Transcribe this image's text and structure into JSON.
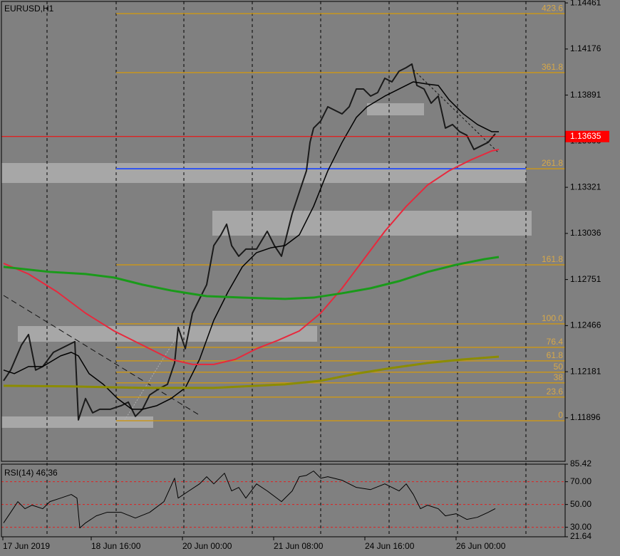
{
  "chart_data": [
    {
      "type": "line",
      "title": "EURUSD,H1",
      "xlim": [
        0,
        198.25
      ],
      "ylim": [
        1.11627,
        1.14479
      ],
      "xticks": [
        {
          "value": 1,
          "label": "17 Jun 2019"
        },
        {
          "value": 32,
          "label": "18 Jun 16:00"
        },
        {
          "value": 64,
          "label": "20 Jun 00:00"
        },
        {
          "value": 96,
          "label": "21 Jun 08:00"
        },
        {
          "value": 128,
          "label": "24 Jun 16:00"
        },
        {
          "value": 160,
          "label": "26 Jun 00:00"
        }
      ],
      "yticks": [
        1.14461,
        1.14176,
        1.13891,
        1.13606,
        1.13321,
        1.13036,
        1.12751,
        1.12466,
        1.12181,
        1.11896
      ],
      "current_price": 1.13635,
      "current_price_color": "#ff0000",
      "hline": 1.13436,
      "hline_color": "#3355ee",
      "fib_x_start": 40.75,
      "fib_color": "#c8961e",
      "levels": [
        {
          "value": 1.14395,
          "label": "423.6"
        },
        {
          "value": 1.1403,
          "label": "361.8"
        },
        {
          "value": 1.13436,
          "label": "261.8"
        },
        {
          "value": 1.12842,
          "label": "161.8"
        },
        {
          "value": 1.12477,
          "label": "100.0"
        },
        {
          "value": 1.12332,
          "label": "76.4"
        },
        {
          "value": 1.12248,
          "label": "61.8"
        },
        {
          "value": 1.12178,
          "label": "50"
        },
        {
          "value": 1.12112,
          "label": "38"
        },
        {
          "value": 1.12024,
          "label": "23.6"
        },
        {
          "value": 1.11878,
          "label": "0"
        }
      ],
      "series": [
        {
          "color": "#1a1a1a",
          "width": 2,
          "x": [
            1.25,
            3.75,
            7.5,
            10,
            12.5,
            15,
            18.75,
            23.75,
            26.25,
            27.5,
            30,
            32.5,
            35,
            38.75,
            42.5,
            45,
            47.5,
            50,
            52.5,
            56.25,
            58.75,
            61.25,
            62.5,
            65,
            67.5,
            70,
            72.5,
            75,
            77.5,
            79.5,
            81.25,
            83.75,
            86.25,
            90,
            93.75,
            96.25,
            98.75,
            100,
            102.5,
            105,
            107.5,
            108.75,
            110,
            112.5,
            115,
            117.5,
            120,
            122.5,
            125,
            127.5,
            130,
            132.5,
            135,
            137.5,
            140,
            142.5,
            144.5,
            146.25,
            148.75,
            151.25,
            153.75,
            156.25,
            158.75,
            161.25,
            163.75,
            166.25,
            168.75,
            171.25,
            173.75
          ],
          "values": [
            1.12125,
            1.12191,
            1.12345,
            1.12411,
            1.12191,
            1.12213,
            1.12301,
            1.12345,
            1.12367,
            1.11883,
            1.12015,
            1.11927,
            1.11949,
            1.11949,
            1.11971,
            1.11993,
            1.11905,
            1.11949,
            1.12037,
            1.12081,
            1.12103,
            1.12235,
            1.12455,
            1.12323,
            1.12543,
            1.12631,
            1.12719,
            1.12961,
            1.13027,
            1.13093,
            1.12961,
            1.12895,
            1.12939,
            1.12939,
            1.13049,
            1.12961,
            1.12895,
            1.12983,
            1.13159,
            1.13291,
            1.13423,
            1.13599,
            1.13687,
            1.13731,
            1.13819,
            1.13797,
            1.13775,
            1.13819,
            1.13929,
            1.13929,
            1.13885,
            1.13907,
            1.13995,
            1.13973,
            1.14039,
            1.14061,
            1.14083,
            1.13951,
            1.13929,
            1.13841,
            1.13885,
            1.13687,
            1.13709,
            1.13665,
            1.13643,
            1.13555,
            1.13577,
            1.13599,
            1.13652
          ]
        },
        {
          "color": "#000000",
          "width": 1.5,
          "x": [
            1.25,
            5,
            10,
            15,
            21.25,
            25,
            27.5,
            31.25,
            36.25,
            41.25,
            46.25,
            50,
            55,
            60,
            65,
            70,
            75,
            80,
            85,
            90,
            95,
            100,
            105,
            110,
            115,
            120,
            125,
            128.75,
            135,
            140,
            145,
            150,
            153.75,
            157.5,
            162.5,
            167.5,
            172.5,
            175
          ],
          "values": [
            1.12191,
            1.12169,
            1.12213,
            1.12213,
            1.12279,
            1.12301,
            1.12279,
            1.12169,
            1.12103,
            1.12015,
            1.11949,
            1.11949,
            1.11971,
            1.12015,
            1.12081,
            1.12257,
            1.12499,
            1.12675,
            1.12829,
            1.12917,
            1.12947,
            1.12961,
            1.13027,
            1.13203,
            1.13423,
            1.13599,
            1.13753,
            1.13819,
            1.13885,
            1.13929,
            1.13973,
            1.13959,
            1.13951,
            1.13863,
            1.13775,
            1.13709,
            1.13665,
            1.13665
          ]
        },
        {
          "color": "#e8283c",
          "width": 2,
          "x": [
            1.25,
            10,
            20,
            30,
            40,
            50,
            60,
            67.5,
            75,
            82.5,
            90,
            97.5,
            105,
            112.5,
            120,
            127.5,
            135,
            142.5,
            150,
            157.5,
            165,
            172.5,
            175
          ],
          "values": [
            1.12851,
            1.12785,
            1.12675,
            1.12543,
            1.12433,
            1.12345,
            1.12257,
            1.12226,
            1.12226,
            1.12257,
            1.12323,
            1.12375,
            1.12433,
            1.12543,
            1.12697,
            1.12873,
            1.13049,
            1.13203,
            1.13335,
            1.13423,
            1.13489,
            1.13546,
            1.13555
          ]
        },
        {
          "color": "#1a9a1a",
          "width": 3,
          "x": [
            1.25,
            17.5,
            30,
            40,
            50,
            60,
            72.5,
            85,
            100,
            110,
            120,
            130,
            140,
            150,
            160,
            170,
            175
          ],
          "values": [
            1.12829,
            1.12798,
            1.12785,
            1.12763,
            1.12719,
            1.12683,
            1.12648,
            1.12639,
            1.12631,
            1.12639,
            1.12666,
            1.12697,
            1.12741,
            1.12798,
            1.12842,
            1.12877,
            1.1289
          ]
        },
        {
          "color": "#8c8c00",
          "width": 3,
          "x": [
            1.25,
            25,
            50,
            75,
            100,
            112.5,
            125,
            137.5,
            150,
            162.5,
            175
          ],
          "values": [
            1.12094,
            1.1209,
            1.12081,
            1.12081,
            1.12103,
            1.12125,
            1.12169,
            1.12204,
            1.12235,
            1.12257,
            1.12274
          ]
        }
      ]
    },
    {
      "type": "line",
      "title": "RSI(14) 46.36",
      "xlim": [
        0,
        198.25
      ],
      "ylim": [
        21.64,
        85.42
      ],
      "yticks": [
        85.42,
        {
          "value": 70,
          "label": "70.00"
        },
        {
          "value": 50,
          "label": "50.00"
        },
        {
          "value": 30,
          "label": "30.00"
        },
        21.64
      ],
      "levels": [
        70,
        50,
        30
      ],
      "level_color": "#e02020",
      "series": [
        {
          "color": "#000000",
          "width": 1,
          "x": [
            1.25,
            3.75,
            6.25,
            8.75,
            11.25,
            15,
            17.5,
            21.25,
            25,
            27,
            28,
            30,
            33.75,
            37.5,
            42.5,
            47.5,
            52.5,
            57.5,
            61.25,
            62.5,
            66.25,
            70,
            72.5,
            75,
            78.75,
            81.25,
            83.75,
            86.25,
            90,
            93.75,
            98.75,
            102.5,
            105,
            107.5,
            110,
            112.5,
            115,
            120,
            125,
            130,
            135,
            140,
            142.5,
            145,
            147.5,
            150,
            153.75,
            156.25,
            160,
            163.75,
            167.5,
            171.25,
            173.75
          ],
          "values": [
            33.8,
            43.1,
            52.5,
            46.3,
            49.4,
            46.3,
            52.5,
            55.6,
            58.8,
            55.6,
            29.4,
            33.8,
            40,
            43.1,
            43.1,
            38.1,
            43.1,
            52.5,
            73.1,
            55.6,
            61.9,
            68.1,
            74.4,
            68.1,
            77.5,
            61.9,
            65,
            55.6,
            68.1,
            61.9,
            52.5,
            61.9,
            74.4,
            75.6,
            79.4,
            73.1,
            74.4,
            71.3,
            65,
            63.1,
            68.1,
            61.9,
            68.1,
            58.8,
            46.3,
            49.4,
            46.3,
            40,
            41.9,
            36.9,
            38.8,
            43.1,
            46.36
          ]
        }
      ]
    }
  ]
}
